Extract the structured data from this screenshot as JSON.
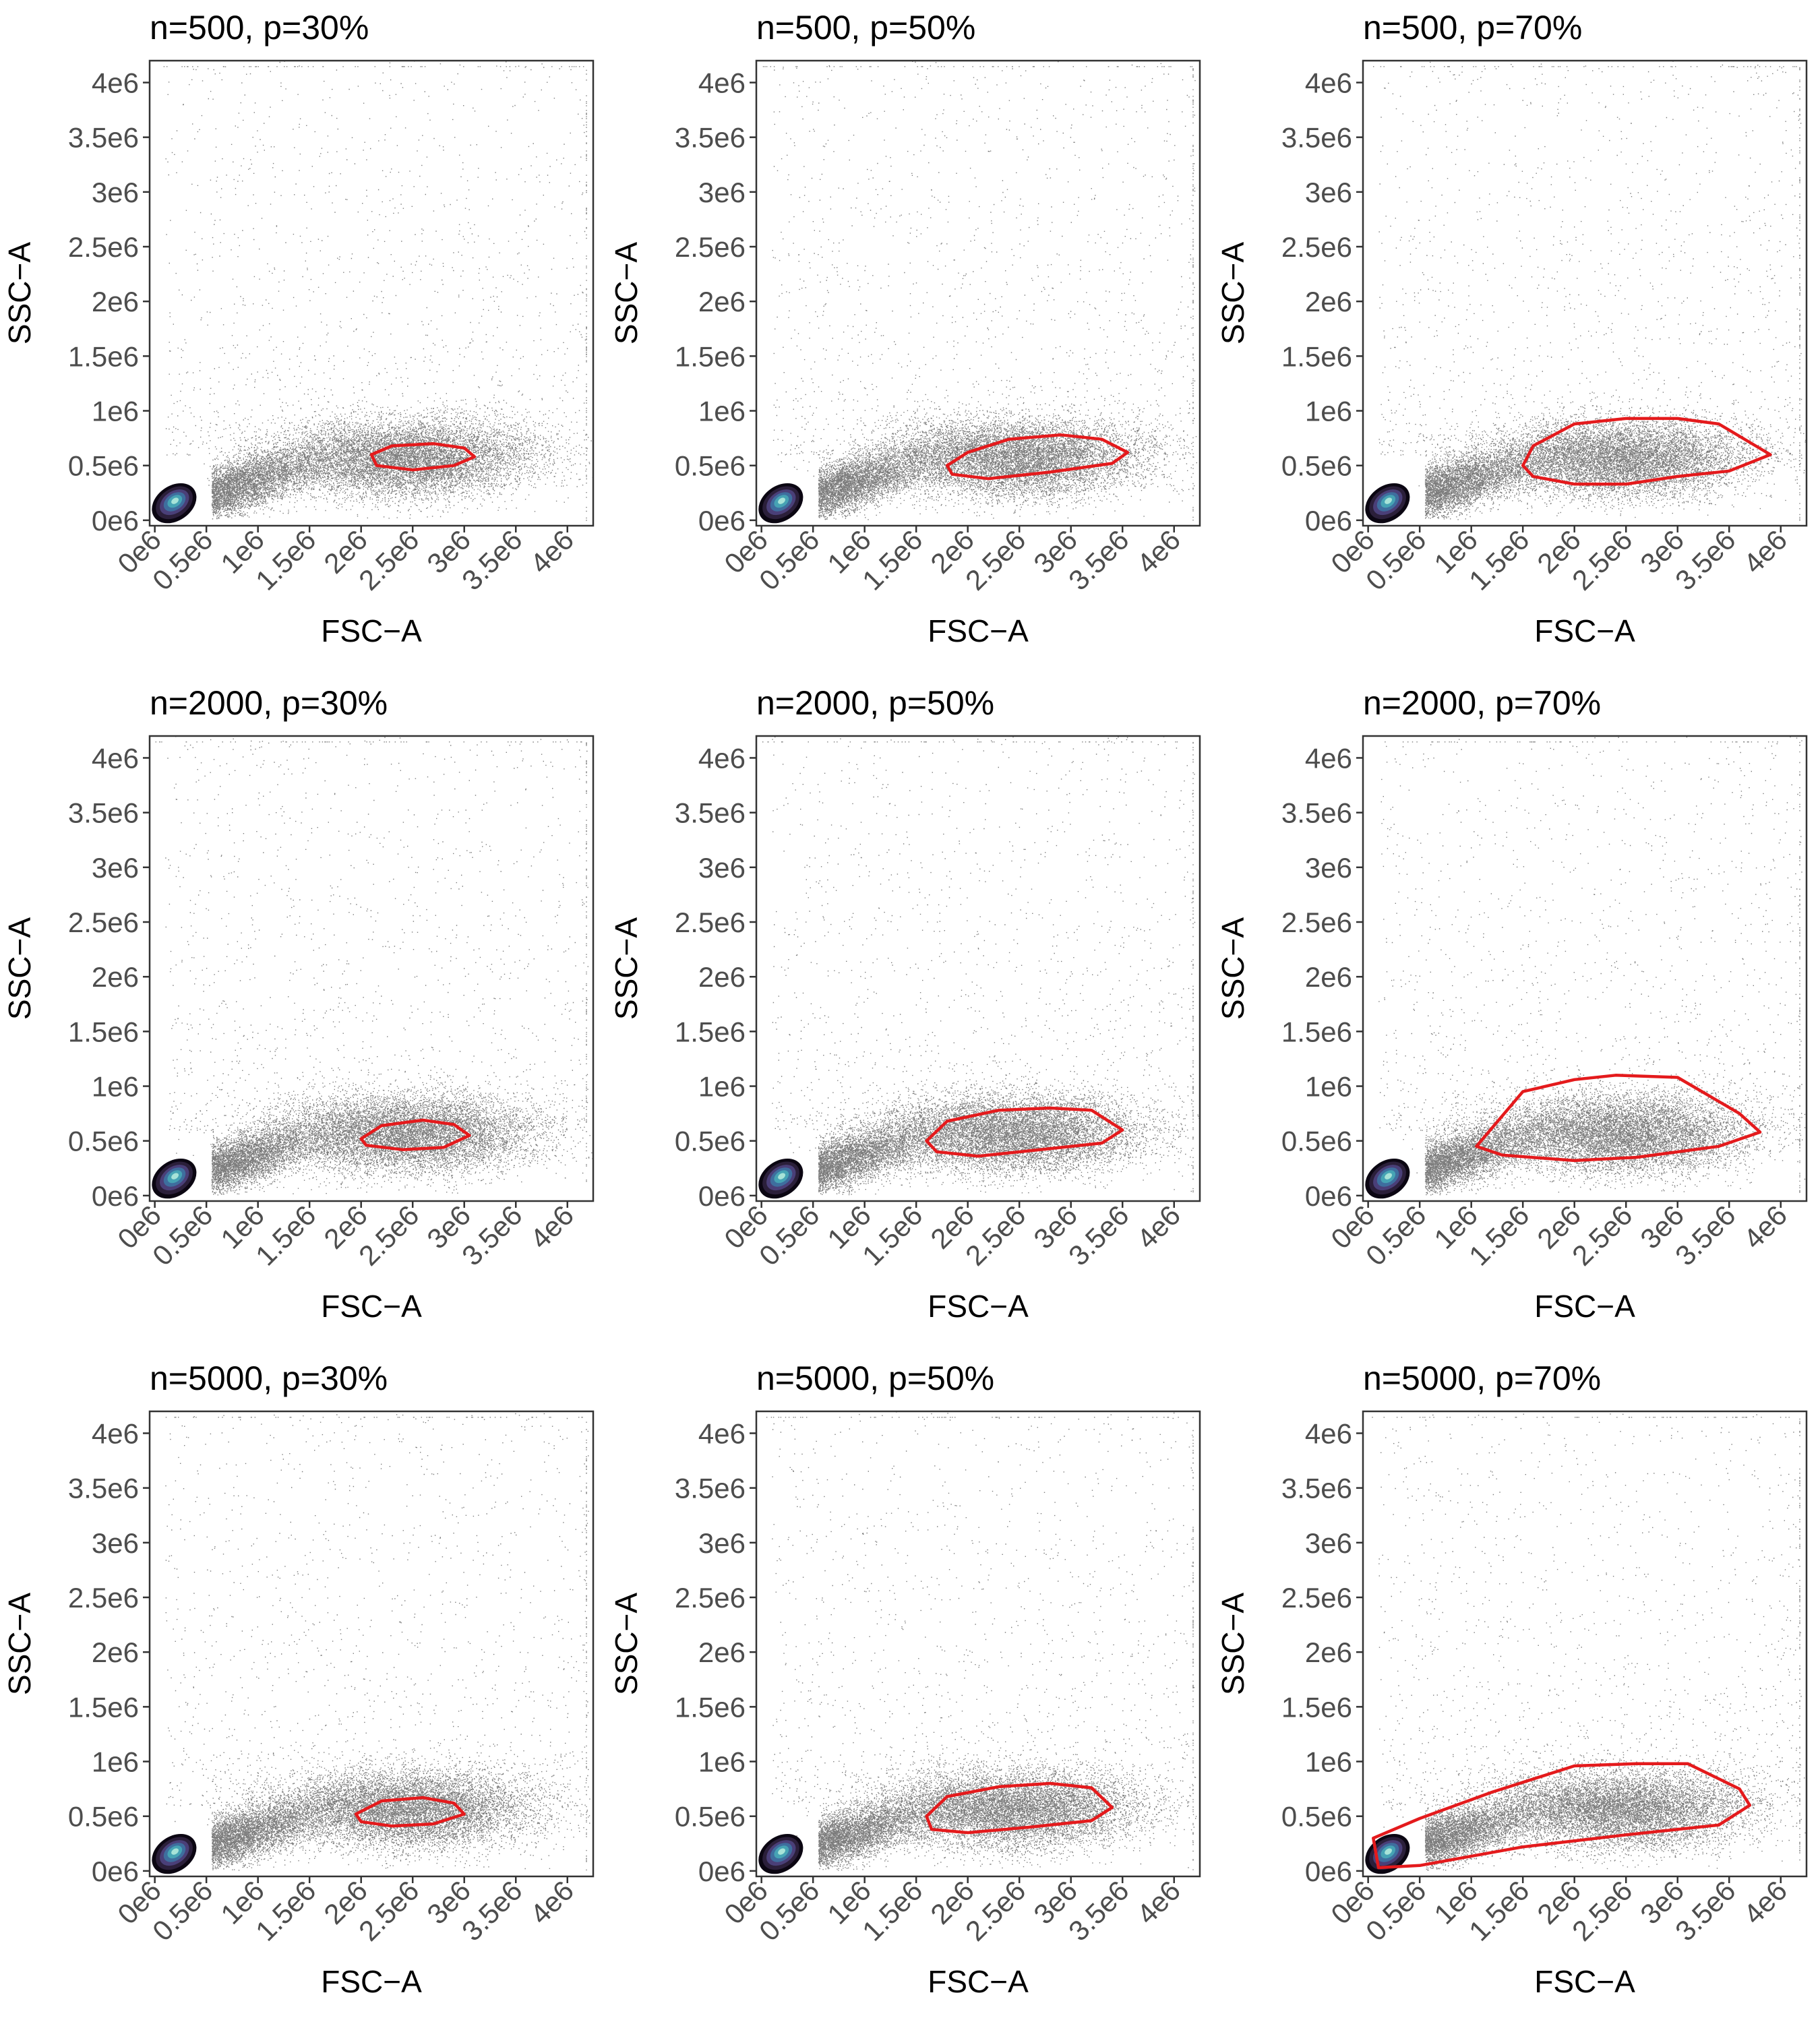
{
  "chart_data": [
    {
      "type": "scatter",
      "title": "n=500, p=30%",
      "xlabel": "FSC−A",
      "ylabel": "SSC−A",
      "xlim": [
        -50000.0,
        4250000.0
      ],
      "ylim": [
        -50000.0,
        4200000.0
      ],
      "xticks": [
        0,
        500000,
        1000000,
        1500000,
        2000000,
        2500000,
        3000000,
        3500000,
        4000000
      ],
      "xtick_labels": [
        "0e6",
        "0.5e6",
        "1e6",
        "1.5e6",
        "2e6",
        "2.5e6",
        "3e6",
        "3.5e6",
        "4e6"
      ],
      "yticks": [
        0,
        500000,
        1000000,
        1500000,
        2000000,
        2500000,
        3000000,
        3500000,
        4000000
      ],
      "ytick_labels": [
        "0e6",
        "0.5e6",
        "1e6",
        "1.5e6",
        "2e6",
        "2.5e6",
        "3e6",
        "3.5e6",
        "4e6"
      ],
      "gate_color": "#e41a1c",
      "gate": [
        [
          2100000.0,
          600000.0
        ],
        [
          2300000.0,
          680000.0
        ],
        [
          2700000.0,
          700000.0
        ],
        [
          3000000.0,
          660000.0
        ],
        [
          3100000.0,
          580000.0
        ],
        [
          2900000.0,
          500000.0
        ],
        [
          2500000.0,
          460000.0
        ],
        [
          2150000.0,
          500000.0
        ]
      ]
    },
    {
      "type": "scatter",
      "title": "n=500, p=50%",
      "xlabel": "FSC−A",
      "ylabel": "SSC−A",
      "xlim": [
        -50000.0,
        4250000.0
      ],
      "ylim": [
        -50000.0,
        4200000.0
      ],
      "xticks": [
        0,
        500000,
        1000000,
        1500000,
        2000000,
        2500000,
        3000000,
        3500000,
        4000000
      ],
      "xtick_labels": [
        "0e6",
        "0.5e6",
        "1e6",
        "1.5e6",
        "2e6",
        "2.5e6",
        "3e6",
        "3.5e6",
        "4e6"
      ],
      "yticks": [
        0,
        500000,
        1000000,
        1500000,
        2000000,
        2500000,
        3000000,
        3500000,
        4000000
      ],
      "ytick_labels": [
        "0e6",
        "0.5e6",
        "1e6",
        "1.5e6",
        "2e6",
        "2.5e6",
        "3e6",
        "3.5e6",
        "4e6"
      ],
      "gate_color": "#e41a1c",
      "gate": [
        [
          1800000.0,
          500000.0
        ],
        [
          2000000.0,
          620000.0
        ],
        [
          2400000.0,
          740000.0
        ],
        [
          2900000.0,
          780000.0
        ],
        [
          3300000.0,
          740000.0
        ],
        [
          3550000.0,
          620000.0
        ],
        [
          3400000.0,
          520000.0
        ],
        [
          2800000.0,
          440000.0
        ],
        [
          2200000.0,
          380000.0
        ],
        [
          1850000.0,
          420000.0
        ]
      ]
    },
    {
      "type": "scatter",
      "title": "n=500, p=70%",
      "xlabel": "FSC−A",
      "ylabel": "SSC−A",
      "xlim": [
        -50000.0,
        4250000.0
      ],
      "ylim": [
        -50000.0,
        4200000.0
      ],
      "xticks": [
        0,
        500000,
        1000000,
        1500000,
        2000000,
        2500000,
        3000000,
        3500000,
        4000000
      ],
      "xtick_labels": [
        "0e6",
        "0.5e6",
        "1e6",
        "1.5e6",
        "2e6",
        "2.5e6",
        "3e6",
        "3.5e6",
        "4e6"
      ],
      "yticks": [
        0,
        500000,
        1000000,
        1500000,
        2000000,
        2500000,
        3000000,
        3500000,
        4000000
      ],
      "ytick_labels": [
        "0e6",
        "0.5e6",
        "1e6",
        "1.5e6",
        "2e6",
        "2.5e6",
        "3e6",
        "3.5e6",
        "4e6"
      ],
      "gate_color": "#e41a1c",
      "gate": [
        [
          1500000.0,
          500000.0
        ],
        [
          1600000.0,
          680000.0
        ],
        [
          2000000.0,
          880000.0
        ],
        [
          2500000.0,
          930000.0
        ],
        [
          3000000.0,
          930000.0
        ],
        [
          3400000.0,
          880000.0
        ],
        [
          3900000.0,
          600000.0
        ],
        [
          3500000.0,
          450000.0
        ],
        [
          3000000.0,
          400000.0
        ],
        [
          2500000.0,
          330000.0
        ],
        [
          2000000.0,
          330000.0
        ],
        [
          1600000.0,
          400000.0
        ]
      ]
    },
    {
      "type": "scatter",
      "title": "n=2000, p=30%",
      "xlabel": "FSC−A",
      "ylabel": "SSC−A",
      "xlim": [
        -50000.0,
        4250000.0
      ],
      "ylim": [
        -50000.0,
        4200000.0
      ],
      "xticks": [
        0,
        500000,
        1000000,
        1500000,
        2000000,
        2500000,
        3000000,
        3500000,
        4000000
      ],
      "xtick_labels": [
        "0e6",
        "0.5e6",
        "1e6",
        "1.5e6",
        "2e6",
        "2.5e6",
        "3e6",
        "3.5e6",
        "4e6"
      ],
      "yticks": [
        0,
        500000,
        1000000,
        1500000,
        2000000,
        2500000,
        3000000,
        3500000,
        4000000
      ],
      "ytick_labels": [
        "0e6",
        "0.5e6",
        "1e6",
        "1.5e6",
        "2e6",
        "2.5e6",
        "3e6",
        "3.5e6",
        "4e6"
      ],
      "gate_color": "#e41a1c",
      "gate": [
        [
          2000000.0,
          520000.0
        ],
        [
          2200000.0,
          640000.0
        ],
        [
          2600000.0,
          690000.0
        ],
        [
          2900000.0,
          650000.0
        ],
        [
          3050000.0,
          550000.0
        ],
        [
          2800000.0,
          440000.0
        ],
        [
          2400000.0,
          420000.0
        ],
        [
          2050000.0,
          460000.0
        ]
      ]
    },
    {
      "type": "scatter",
      "title": "n=2000, p=50%",
      "xlabel": "FSC−A",
      "ylabel": "SSC−A",
      "xlim": [
        -50000.0,
        4250000.0
      ],
      "ylim": [
        -50000.0,
        4200000.0
      ],
      "xticks": [
        0,
        500000,
        1000000,
        1500000,
        2000000,
        2500000,
        3000000,
        3500000,
        4000000
      ],
      "xtick_labels": [
        "0e6",
        "0.5e6",
        "1e6",
        "1.5e6",
        "2e6",
        "2.5e6",
        "3e6",
        "3.5e6",
        "4e6"
      ],
      "yticks": [
        0,
        500000,
        1000000,
        1500000,
        2000000,
        2500000,
        3000000,
        3500000,
        4000000
      ],
      "ytick_labels": [
        "0e6",
        "0.5e6",
        "1e6",
        "1.5e6",
        "2e6",
        "2.5e6",
        "3e6",
        "3.5e6",
        "4e6"
      ],
      "gate_color": "#e41a1c",
      "gate": [
        [
          1600000.0,
          500000.0
        ],
        [
          1800000.0,
          680000.0
        ],
        [
          2300000.0,
          780000.0
        ],
        [
          2800000.0,
          800000.0
        ],
        [
          3200000.0,
          780000.0
        ],
        [
          3500000.0,
          600000.0
        ],
        [
          3300000.0,
          480000.0
        ],
        [
          2700000.0,
          420000.0
        ],
        [
          2100000.0,
          360000.0
        ],
        [
          1700000.0,
          400000.0
        ]
      ]
    },
    {
      "type": "scatter",
      "title": "n=2000, p=70%",
      "xlabel": "FSC−A",
      "ylabel": "SSC−A",
      "xlim": [
        -50000.0,
        4250000.0
      ],
      "ylim": [
        -50000.0,
        4200000.0
      ],
      "xticks": [
        0,
        500000,
        1000000,
        1500000,
        2000000,
        2500000,
        3000000,
        3500000,
        4000000
      ],
      "xtick_labels": [
        "0e6",
        "0.5e6",
        "1e6",
        "1.5e6",
        "2e6",
        "2.5e6",
        "3e6",
        "3.5e6",
        "4e6"
      ],
      "yticks": [
        0,
        500000,
        1000000,
        1500000,
        2000000,
        2500000,
        3000000,
        3500000,
        4000000
      ],
      "ytick_labels": [
        "0e6",
        "0.5e6",
        "1e6",
        "1.5e6",
        "2e6",
        "2.5e6",
        "3e6",
        "3.5e6",
        "4e6"
      ],
      "gate_color": "#e41a1c",
      "gate": [
        [
          1050000.0,
          450000.0
        ],
        [
          1500000.0,
          950000.0
        ],
        [
          2000000.0,
          1060000.0
        ],
        [
          2400000.0,
          1100000.0
        ],
        [
          3000000.0,
          1080000.0
        ],
        [
          3600000.0,
          750000.0
        ],
        [
          3800000.0,
          580000.0
        ],
        [
          3400000.0,
          450000.0
        ],
        [
          2600000.0,
          350000.0
        ],
        [
          2000000.0,
          320000.0
        ],
        [
          1300000.0,
          370000.0
        ]
      ]
    },
    {
      "type": "scatter",
      "title": "n=5000, p=30%",
      "xlabel": "FSC−A",
      "ylabel": "SSC−A",
      "xlim": [
        -50000.0,
        4250000.0
      ],
      "ylim": [
        -50000.0,
        4200000.0
      ],
      "xticks": [
        0,
        500000,
        1000000,
        1500000,
        2000000,
        2500000,
        3000000,
        3500000,
        4000000
      ],
      "xtick_labels": [
        "0e6",
        "0.5e6",
        "1e6",
        "1.5e6",
        "2e6",
        "2.5e6",
        "3e6",
        "3.5e6",
        "4e6"
      ],
      "yticks": [
        0,
        500000,
        1000000,
        1500000,
        2000000,
        2500000,
        3000000,
        3500000,
        4000000
      ],
      "ytick_labels": [
        "0e6",
        "0.5e6",
        "1e6",
        "1.5e6",
        "2e6",
        "2.5e6",
        "3e6",
        "3.5e6",
        "4e6"
      ],
      "gate_color": "#e41a1c",
      "gate": [
        [
          1950000.0,
          520000.0
        ],
        [
          2200000.0,
          640000.0
        ],
        [
          2600000.0,
          670000.0
        ],
        [
          2900000.0,
          620000.0
        ],
        [
          3000000.0,
          520000.0
        ],
        [
          2700000.0,
          430000.0
        ],
        [
          2300000.0,
          410000.0
        ],
        [
          2000000.0,
          450000.0
        ]
      ]
    },
    {
      "type": "scatter",
      "title": "n=5000, p=50%",
      "xlabel": "FSC−A",
      "ylabel": "SSC−A",
      "xlim": [
        -50000.0,
        4250000.0
      ],
      "ylim": [
        -50000.0,
        4200000.0
      ],
      "xticks": [
        0,
        500000,
        1000000,
        1500000,
        2000000,
        2500000,
        3000000,
        3500000,
        4000000
      ],
      "xtick_labels": [
        "0e6",
        "0.5e6",
        "1e6",
        "1.5e6",
        "2e6",
        "2.5e6",
        "3e6",
        "3.5e6",
        "4e6"
      ],
      "yticks": [
        0,
        500000,
        1000000,
        1500000,
        2000000,
        2500000,
        3000000,
        3500000,
        4000000
      ],
      "ytick_labels": [
        "0e6",
        "0.5e6",
        "1e6",
        "1.5e6",
        "2e6",
        "2.5e6",
        "3e6",
        "3.5e6",
        "4e6"
      ],
      "gate_color": "#e41a1c",
      "gate": [
        [
          1600000.0,
          500000.0
        ],
        [
          1800000.0,
          680000.0
        ],
        [
          2300000.0,
          770000.0
        ],
        [
          2800000.0,
          800000.0
        ],
        [
          3200000.0,
          760000.0
        ],
        [
          3400000.0,
          580000.0
        ],
        [
          3200000.0,
          460000.0
        ],
        [
          2600000.0,
          400000.0
        ],
        [
          2000000.0,
          350000.0
        ],
        [
          1650000.0,
          380000.0
        ]
      ]
    },
    {
      "type": "scatter",
      "title": "n=5000, p=70%",
      "xlabel": "FSC−A",
      "ylabel": "SSC−A",
      "xlim": [
        -50000.0,
        4250000.0
      ],
      "ylim": [
        -50000.0,
        4200000.0
      ],
      "xticks": [
        0,
        500000,
        1000000,
        1500000,
        2000000,
        2500000,
        3000000,
        3500000,
        4000000
      ],
      "xtick_labels": [
        "0e6",
        "0.5e6",
        "1e6",
        "1.5e6",
        "2e6",
        "2.5e6",
        "3e6",
        "3.5e6",
        "4e6"
      ],
      "yticks": [
        0,
        500000,
        1000000,
        1500000,
        2000000,
        2500000,
        3000000,
        3500000,
        4000000
      ],
      "ytick_labels": [
        "0e6",
        "0.5e6",
        "1e6",
        "1.5e6",
        "2e6",
        "2.5e6",
        "3e6",
        "3.5e6",
        "4e6"
      ],
      "gate_color": "#e41a1c",
      "gate": [
        [
          50000.0,
          300000.0
        ],
        [
          500000.0,
          480000.0
        ],
        [
          1200000.0,
          720000.0
        ],
        [
          2000000.0,
          960000.0
        ],
        [
          2600000.0,
          980000.0
        ],
        [
          3100000.0,
          980000.0
        ],
        [
          3600000.0,
          750000.0
        ],
        [
          3700000.0,
          600000.0
        ],
        [
          3400000.0,
          420000.0
        ],
        [
          2500000.0,
          330000.0
        ],
        [
          1500000.0,
          220000.0
        ],
        [
          500000.0,
          50000.0
        ],
        [
          100000.0,
          30000.0
        ]
      ]
    }
  ]
}
